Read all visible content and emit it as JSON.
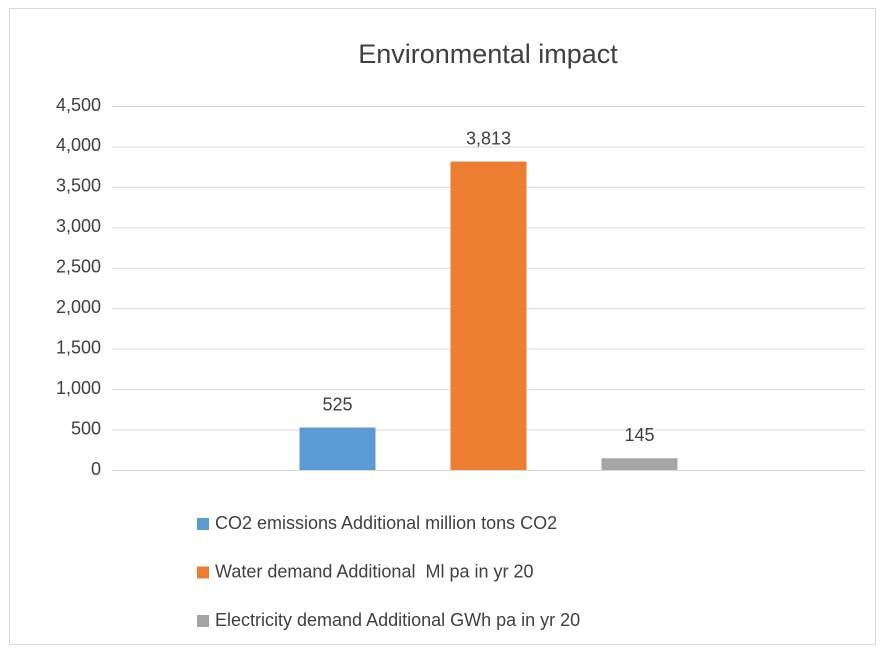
{
  "chart_data": {
    "type": "bar",
    "title": "Environmental impact",
    "categories": [
      null
    ],
    "series": [
      {
        "name": "CO2 emissions Additional million tons CO2",
        "color": "#5b9bd5",
        "values": [
          525
        ],
        "value_labels": [
          "525"
        ]
      },
      {
        "name": "Water demand Additional  Ml pa in yr 20",
        "color": "#ed7d31",
        "values": [
          3813
        ],
        "value_labels": [
          "3,813"
        ]
      },
      {
        "name": "Electricity demand Additional GWh pa in yr 20",
        "color": "#a5a5a5",
        "values": [
          145
        ],
        "value_labels": [
          "145"
        ]
      }
    ],
    "ylim": [
      0,
      4500
    ],
    "yticks": [
      0,
      500,
      {
        "value": 1000,
        "label": "1,000"
      },
      {
        "value": 1500,
        "label": "1,500"
      },
      {
        "value": 2000,
        "label": "2,000"
      },
      {
        "value": 2500,
        "label": "2,500"
      },
      {
        "value": 3000,
        "label": "3,000"
      },
      {
        "value": 3500,
        "label": "3,500"
      },
      {
        "value": 4000,
        "label": "4,000"
      },
      {
        "value": 4500,
        "label": "4,500"
      }
    ],
    "grid": true,
    "legend": "bottom"
  }
}
